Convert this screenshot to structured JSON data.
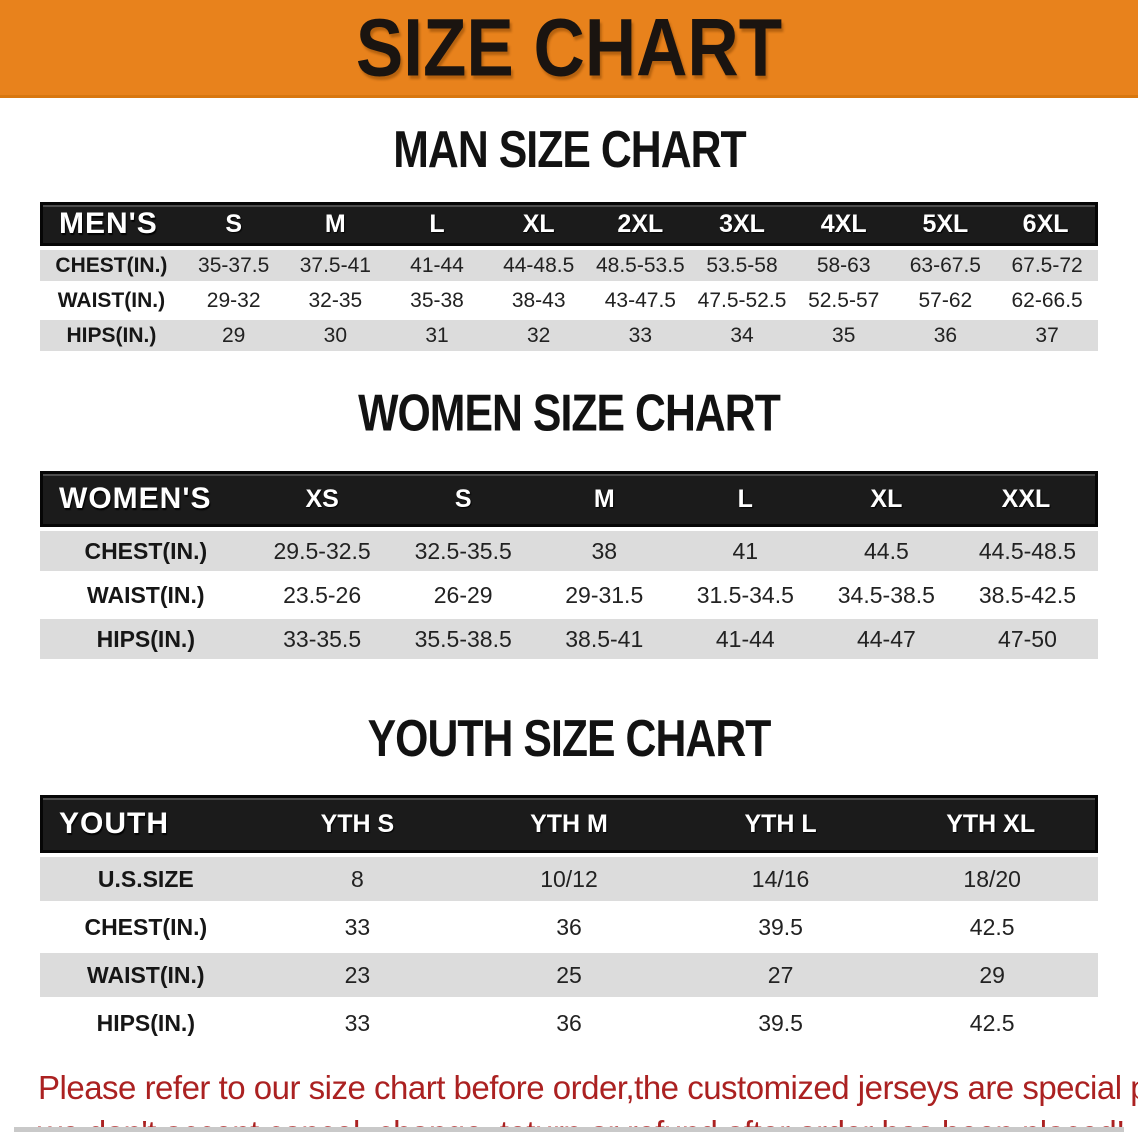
{
  "banner": {
    "title": "SIZE CHART"
  },
  "sections": [
    {
      "heading": "MAN SIZE CHART",
      "corner": "MEN'S",
      "columns": [
        "S",
        "M",
        "L",
        "XL",
        "2XL",
        "3XL",
        "4XL",
        "5XL",
        "6XL"
      ],
      "rows": [
        {
          "label": "CHEST(IN.)",
          "values": [
            "35-37.5",
            "37.5-41",
            "41-44",
            "44-48.5",
            "48.5-53.5",
            "53.5-58",
            "58-63",
            "63-67.5",
            "67.5-72"
          ]
        },
        {
          "label": "WAIST(IN.)",
          "values": [
            "29-32",
            "32-35",
            "35-38",
            "38-43",
            "43-47.5",
            "47.5-52.5",
            "52.5-57",
            "57-62",
            "62-66.5"
          ]
        },
        {
          "label": "HIPS(IN.)",
          "values": [
            "29",
            "30",
            "31",
            "32",
            "33",
            "34",
            "35",
            "36",
            "37"
          ]
        }
      ]
    },
    {
      "heading": "WOMEN SIZE CHART",
      "corner": "WOMEN'S",
      "columns": [
        "XS",
        "S",
        "M",
        "L",
        "XL",
        "XXL"
      ],
      "rows": [
        {
          "label": "CHEST(IN.)",
          "values": [
            "29.5-32.5",
            "32.5-35.5",
            "38",
            "41",
            "44.5",
            "44.5-48.5"
          ]
        },
        {
          "label": "WAIST(IN.)",
          "values": [
            "23.5-26",
            "26-29",
            "29-31.5",
            "31.5-34.5",
            "34.5-38.5",
            "38.5-42.5"
          ]
        },
        {
          "label": "HIPS(IN.)",
          "values": [
            "33-35.5",
            "35.5-38.5",
            "38.5-41",
            "41-44",
            "44-47",
            "47-50"
          ]
        }
      ]
    },
    {
      "heading": "YOUTH SIZE CHART",
      "corner": "YOUTH",
      "columns": [
        "YTH S",
        "YTH M",
        "YTH L",
        "YTH XL"
      ],
      "rows": [
        {
          "label": "U.S.SIZE",
          "values": [
            "8",
            "10/12",
            "14/16",
            "18/20"
          ]
        },
        {
          "label": "CHEST(IN.)",
          "values": [
            "33",
            "36",
            "39.5",
            "42.5"
          ]
        },
        {
          "label": "WAIST(IN.)",
          "values": [
            "23",
            "25",
            "27",
            "29"
          ]
        },
        {
          "label": "HIPS(IN.)",
          "values": [
            "33",
            "36",
            "39.5",
            "42.5"
          ]
        }
      ]
    }
  ],
  "disclaimer": {
    "line1": "Please refer to our size chart before order,the customized jerseys are special products,",
    "line2": "we don't accept cancel, change, teturn or refund after order has been placed!"
  },
  "colors": {
    "banner_orange": "#e8821c",
    "table_header_black": "#1b1b1b",
    "stripe_gray": "#dcdcdc",
    "disclaimer_red": "#ab2121",
    "bottom_bar_gray": "#c9c9c9"
  }
}
